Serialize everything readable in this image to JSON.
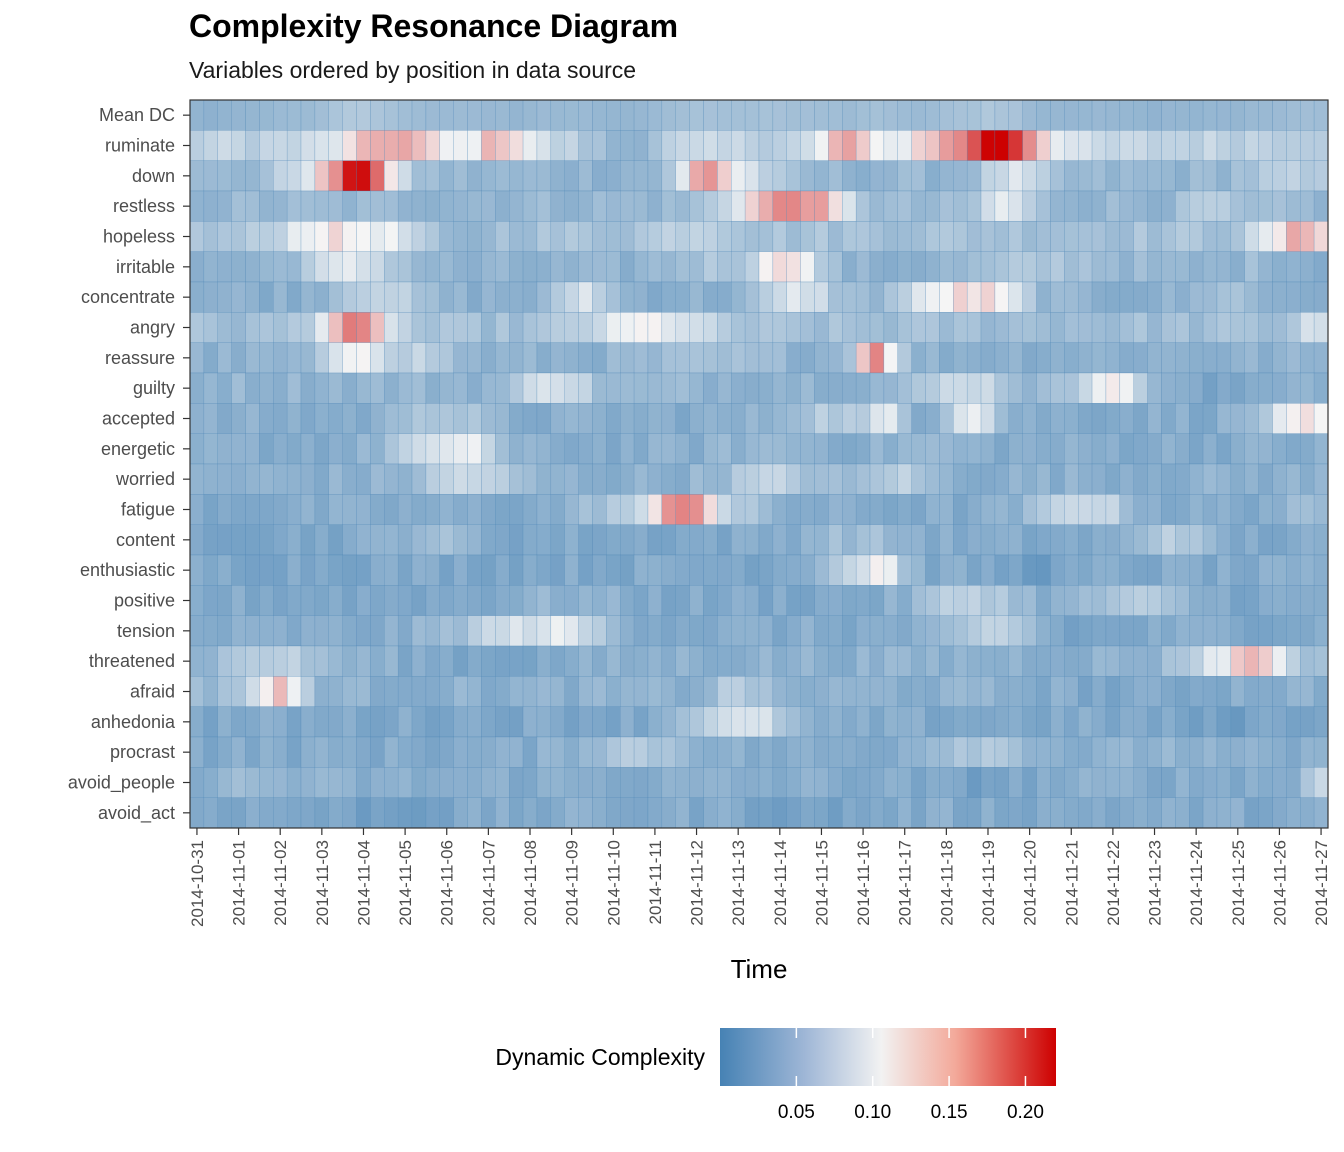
{
  "chart_data": {
    "type": "heatmap",
    "title": "Complexity Resonance Diagram",
    "subtitle": "Variables ordered by position in data source",
    "xlabel": "Time",
    "ylabel": "",
    "x_tick_labels": [
      "2014-10-31",
      "2014-11-01",
      "2014-11-02",
      "2014-11-03",
      "2014-11-04",
      "2014-11-05",
      "2014-11-06",
      "2014-11-07",
      "2014-11-08",
      "2014-11-09",
      "2014-11-10",
      "2014-11-11",
      "2014-11-12",
      "2014-11-13",
      "2014-11-14",
      "2014-11-15",
      "2014-11-16",
      "2014-11-17",
      "2014-11-18",
      "2014-11-19",
      "2014-11-20",
      "2014-11-21",
      "2014-11-22",
      "2014-11-23",
      "2014-11-24",
      "2014-11-25",
      "2014-11-26",
      "2014-11-27"
    ],
    "rows": [
      "Mean DC",
      "ruminate",
      "down",
      "restless",
      "hopeless",
      "irritable",
      "concentrate",
      "angry",
      "reassure",
      "guilty",
      "accepted",
      "energetic",
      "worried",
      "fatigue",
      "content",
      "enthusiastic",
      "positive",
      "tension",
      "threatened",
      "afraid",
      "anhedonia",
      "procrast",
      "avoid_people",
      "avoid_act"
    ],
    "time_points_per_day": 3,
    "row_profiles": [
      {
        "base": 0.04,
        "peaks": []
      },
      {
        "base": 0.078,
        "peaks": [
          [
            4.7,
            2.5,
            0.07
          ],
          [
            7.3,
            1.5,
            0.06
          ],
          [
            10.2,
            1.8,
            -0.03
          ],
          [
            15.6,
            1.2,
            0.07
          ],
          [
            17.9,
            2.2,
            0.06
          ],
          [
            19.2,
            1.5,
            0.1
          ],
          [
            19.9,
            2.0,
            0.05
          ]
        ]
      },
      {
        "base": 0.05,
        "peaks": [
          [
            3.5,
            2.6,
            0.08
          ],
          [
            4.0,
            1.2,
            0.1
          ],
          [
            12.2,
            1.2,
            0.1
          ],
          [
            13.2,
            1.5,
            0.04
          ],
          [
            19.6,
            1.5,
            0.04
          ],
          [
            26.2,
            2.5,
            0.02
          ]
        ]
      },
      {
        "base": 0.052,
        "peaks": [
          [
            13.5,
            2.0,
            0.06
          ],
          [
            14.7,
            2.0,
            0.09
          ],
          [
            19.4,
            1.2,
            0.05
          ],
          [
            24.3,
            1.0,
            0.02
          ]
        ]
      },
      {
        "base": 0.062,
        "peaks": [
          [
            2.9,
            2.0,
            0.05
          ],
          [
            4.4,
            2.0,
            0.04
          ],
          [
            6.2,
            1.5,
            -0.02
          ],
          [
            12.0,
            2.0,
            0.02
          ],
          [
            26.6,
            2.0,
            0.08
          ]
        ]
      },
      {
        "base": 0.045,
        "peaks": [
          [
            3.7,
            2.5,
            0.05
          ],
          [
            14.2,
            1.5,
            0.08
          ],
          [
            12.6,
            3.0,
            0.02
          ],
          [
            20.5,
            4.0,
            0.02
          ],
          [
            25.6,
            1.5,
            0.01
          ]
        ]
      },
      {
        "base": 0.045,
        "peaks": [
          [
            4.3,
            2.0,
            0.04
          ],
          [
            9.3,
            1.2,
            0.05
          ],
          [
            14.5,
            1.8,
            0.05
          ],
          [
            18.2,
            2.6,
            0.07
          ],
          [
            19.3,
            1.5,
            0.03
          ],
          [
            24.7,
            1.2,
            0.02
          ]
        ]
      },
      {
        "base": 0.058,
        "peaks": [
          [
            3.8,
            1.8,
            0.1
          ],
          [
            10.8,
            3.0,
            0.05
          ],
          [
            26.8,
            0.8,
            0.04
          ]
        ]
      },
      {
        "base": 0.046,
        "peaks": [
          [
            3.9,
            1.5,
            0.07
          ],
          [
            5.4,
            1.5,
            0.03
          ],
          [
            16.3,
            1.0,
            0.12
          ],
          [
            12.5,
            4.0,
            0.01
          ]
        ]
      },
      {
        "base": 0.05,
        "peaks": [
          [
            8.4,
            1.2,
            0.05
          ],
          [
            9.2,
            1.0,
            0.02
          ],
          [
            18.5,
            2.0,
            0.04
          ],
          [
            21.9,
            1.5,
            0.07
          ],
          [
            24.5,
            2.0,
            -0.02
          ]
        ]
      },
      {
        "base": 0.042,
        "peaks": [
          [
            5.4,
            1.2,
            0.03
          ],
          [
            6.4,
            1.2,
            0.02
          ],
          [
            15.2,
            2.5,
            0.03
          ],
          [
            16.6,
            0.8,
            0.05
          ],
          [
            18.6,
            1.2,
            0.07
          ],
          [
            26.6,
            2.0,
            0.07
          ]
        ]
      },
      {
        "base": 0.042,
        "peaks": [
          [
            5.4,
            1.8,
            0.04
          ],
          [
            6.6,
            1.2,
            0.06
          ],
          [
            13.8,
            3.0,
            0.01
          ],
          [
            17.5,
            2.0,
            0.01
          ]
        ]
      },
      {
        "base": 0.045,
        "peaks": [
          [
            6.5,
            2.2,
            0.04
          ],
          [
            13.8,
            2.5,
            0.03
          ],
          [
            16.8,
            1.5,
            0.03
          ]
        ]
      },
      {
        "base": 0.04,
        "peaks": [
          [
            11.5,
            1.2,
            0.11
          ],
          [
            12.2,
            1.0,
            0.07
          ],
          [
            10.2,
            2.0,
            0.03
          ],
          [
            13.2,
            1.5,
            0.02
          ],
          [
            21.3,
            2.2,
            0.05
          ],
          [
            26.6,
            2.0,
            0.01
          ]
        ]
      },
      {
        "base": 0.038,
        "peaks": [
          [
            5.6,
            2.0,
            0.02
          ],
          [
            15.8,
            3.0,
            0.02
          ],
          [
            23.4,
            1.5,
            0.04
          ]
        ]
      },
      {
        "base": 0.038,
        "peaks": [
          [
            15.8,
            2.0,
            0.04
          ],
          [
            16.5,
            1.0,
            0.05
          ],
          [
            20.2,
            2.0,
            -0.01
          ]
        ]
      },
      {
        "base": 0.038,
        "peaks": [
          [
            8.8,
            3.0,
            0.01
          ],
          [
            18.6,
            2.5,
            0.04
          ],
          [
            22.5,
            2.5,
            0.03
          ]
        ]
      },
      {
        "base": 0.04,
        "peaks": [
          [
            7.9,
            3.5,
            0.05
          ],
          [
            9.0,
            1.5,
            0.02
          ],
          [
            19.3,
            2.0,
            0.04
          ],
          [
            21.0,
            3.0,
            -0.01
          ]
        ]
      },
      {
        "base": 0.046,
        "peaks": [
          [
            1.8,
            2.5,
            0.03
          ],
          [
            7.2,
            5.0,
            -0.01
          ],
          [
            24.8,
            2.2,
            0.06
          ],
          [
            25.5,
            1.0,
            0.05
          ],
          [
            26.3,
            1.5,
            0.02
          ]
        ]
      },
      {
        "base": 0.045,
        "peaks": [
          [
            2.0,
            1.2,
            0.07
          ],
          [
            1.3,
            2.5,
            0.02
          ],
          [
            13.0,
            1.2,
            0.03
          ],
          [
            22.5,
            4.0,
            -0.01
          ]
        ]
      },
      {
        "base": 0.038,
        "peaks": [
          [
            12.4,
            2.0,
            0.04
          ],
          [
            13.6,
            1.5,
            0.04
          ],
          [
            24.5,
            2.5,
            -0.01
          ]
        ]
      },
      {
        "base": 0.04,
        "peaks": [
          [
            10.6,
            3.0,
            0.03
          ],
          [
            18.8,
            3.0,
            0.03
          ],
          [
            23.2,
            2.0,
            0.01
          ]
        ]
      },
      {
        "base": 0.042,
        "peaks": [
          [
            1.2,
            3.0,
            0.01
          ],
          [
            18.5,
            3.5,
            -0.01
          ],
          [
            27.0,
            0.8,
            0.04
          ]
        ]
      },
      {
        "base": 0.04,
        "peaks": [
          [
            4.5,
            4.0,
            -0.01
          ],
          [
            14.7,
            2.5,
            -0.01
          ]
        ]
      }
    ],
    "value_range": [
      0.0,
      0.22
    ],
    "legend": {
      "title": "Dynamic Complexity",
      "placement": "bottom",
      "ticks": [
        0.05,
        0.1,
        0.15,
        0.2
      ],
      "tick_labels": [
        "0.05",
        "0.10",
        "0.15",
        "0.20"
      ],
      "color_stops": [
        {
          "value": 0.0,
          "color": "#4682B4"
        },
        {
          "value": 0.11,
          "color": "#F5F5F5"
        },
        {
          "value": 0.22,
          "color": "#CD0000"
        }
      ]
    },
    "colors": {
      "cell_border": "#4682B4",
      "low": "#4682B4",
      "mid": "#F5F5F5",
      "high": "#CD0000"
    }
  }
}
